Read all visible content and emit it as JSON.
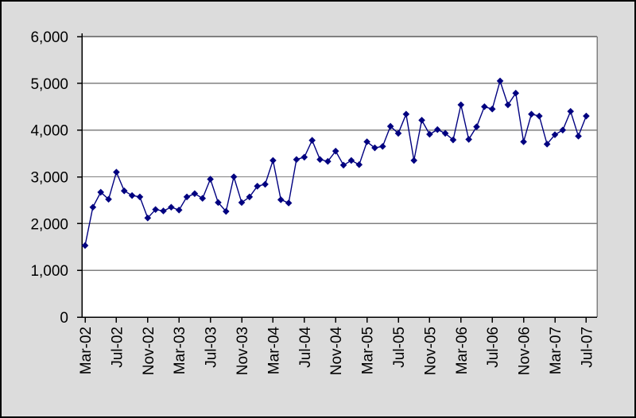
{
  "window": {
    "background_color": "#dcdcdc",
    "plot_background_color": "#ffffff",
    "border_color": "#000000"
  },
  "chart_data": {
    "type": "line",
    "title": "",
    "legend": "none",
    "grid": "horizontal-only",
    "gridline_color": "#808080",
    "axis_color": "#000000",
    "series": [
      {
        "name": "monthly-values",
        "color": "#000080",
        "marker": "diamond",
        "values": [
          1530,
          2350,
          2670,
          2520,
          3100,
          2700,
          2600,
          2570,
          2120,
          2300,
          2270,
          2350,
          2290,
          2570,
          2640,
          2540,
          2950,
          2450,
          2260,
          3000,
          2450,
          2570,
          2800,
          2840,
          3350,
          2510,
          2440,
          3370,
          3420,
          3780,
          3370,
          3330,
          3550,
          3250,
          3350,
          3260,
          3750,
          3620,
          3650,
          4080,
          3930,
          4340,
          3350,
          4210,
          3910,
          4010,
          3930,
          3790,
          4540,
          3800,
          4070,
          4500,
          4450,
          5050,
          4540,
          4790,
          3750,
          4340,
          4300,
          3700,
          3900,
          4000,
          4400,
          3870,
          4300
        ]
      }
    ],
    "x": [
      "Mar-02",
      "Apr-02",
      "May-02",
      "Jun-02",
      "Jul-02",
      "Aug-02",
      "Sep-02",
      "Oct-02",
      "Nov-02",
      "Dec-02",
      "Jan-03",
      "Feb-03",
      "Mar-03",
      "Apr-03",
      "May-03",
      "Jun-03",
      "Jul-03",
      "Aug-03",
      "Sep-03",
      "Oct-03",
      "Nov-03",
      "Dec-03",
      "Jan-04",
      "Feb-04",
      "Mar-04",
      "Apr-04",
      "May-04",
      "Jun-04",
      "Jul-04",
      "Aug-04",
      "Sep-04",
      "Oct-04",
      "Nov-04",
      "Dec-04",
      "Jan-05",
      "Feb-05",
      "Mar-05",
      "Apr-05",
      "May-05",
      "Jun-05",
      "Jul-05",
      "Aug-05",
      "Sep-05",
      "Oct-05",
      "Nov-05",
      "Dec-05",
      "Jan-06",
      "Feb-06",
      "Mar-06",
      "Apr-06",
      "May-06",
      "Jun-06",
      "Jul-06",
      "Aug-06",
      "Sep-06",
      "Oct-06",
      "Nov-06",
      "Dec-06",
      "Jan-07",
      "Feb-07",
      "Mar-07",
      "Apr-07",
      "May-07",
      "Jun-07",
      "Jul-07"
    ],
    "x_tick_labels": [
      "Mar-02",
      "Jul-02",
      "Nov-02",
      "Mar-03",
      "Jul-03",
      "Nov-03",
      "Mar-04",
      "Jul-04",
      "Nov-04",
      "Mar-05",
      "Jul-05",
      "Nov-05",
      "Mar-06",
      "Jul-06",
      "Nov-06",
      "Mar-07",
      "Jul-07"
    ],
    "x_tick_indices": [
      0,
      4,
      8,
      12,
      16,
      20,
      24,
      28,
      32,
      36,
      40,
      44,
      48,
      52,
      56,
      60,
      64
    ],
    "ylim": [
      0,
      6000
    ],
    "y_ticks": [
      0,
      1000,
      2000,
      3000,
      4000,
      5000,
      6000
    ],
    "y_tick_labels": [
      "0",
      "1,000",
      "2,000",
      "3,000",
      "4,000",
      "5,000",
      "6,000"
    ]
  }
}
